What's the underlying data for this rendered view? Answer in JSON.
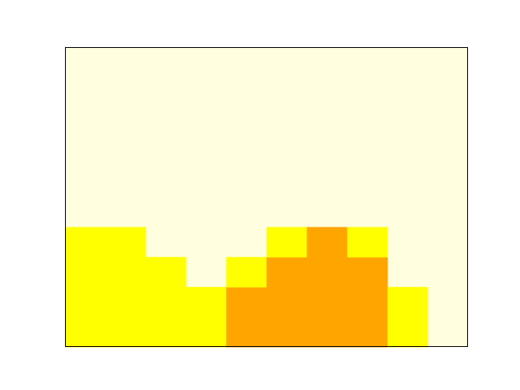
{
  "chart_data": {
    "type": "heatmap",
    "columns": 10,
    "rows": 10,
    "grid": false,
    "colors": {
      "background": "#ffffe0",
      "low": "#ffff00",
      "high": "#ffa500",
      "frame": "#000000"
    },
    "column_levels": [
      {
        "yellow_top": 4,
        "orange_top": 0
      },
      {
        "yellow_top": 4,
        "orange_top": 0
      },
      {
        "yellow_top": 3,
        "orange_top": 0
      },
      {
        "yellow_top": 2,
        "orange_top": 0
      },
      {
        "yellow_top": 3,
        "orange_top": 2
      },
      {
        "yellow_top": 4,
        "orange_top": 3
      },
      {
        "yellow_top": 4,
        "orange_top": 4
      },
      {
        "yellow_top": 4,
        "orange_top": 3
      },
      {
        "yellow_top": 2,
        "orange_top": 0
      },
      {
        "yellow_top": 0,
        "orange_top": 0
      }
    ]
  }
}
